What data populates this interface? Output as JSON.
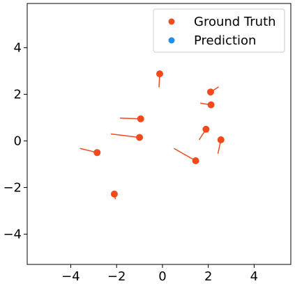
{
  "chart_data": {
    "type": "scatter",
    "xlim": [
      -5.9,
      5.6
    ],
    "ylim": [
      -5.3,
      5.9
    ],
    "xticks": [
      -4,
      -2,
      0,
      2,
      4
    ],
    "yticks": [
      -4,
      -2,
      0,
      2,
      4
    ],
    "xtick_labels": [
      "−4",
      "−2",
      "0",
      "2",
      "4"
    ],
    "ytick_labels": [
      "−4",
      "−2",
      "0",
      "2",
      "4"
    ],
    "grid": false,
    "legend_position": "top-right",
    "series": [
      {
        "name": "Ground Truth",
        "color": "#f24a1a",
        "points": [
          {
            "x": -0.12,
            "y": 2.88,
            "pred_x": -0.15,
            "pred_y": 2.3
          },
          {
            "x": 2.1,
            "y": 2.1,
            "pred_x": 2.45,
            "pred_y": 2.32
          },
          {
            "x": 2.12,
            "y": 1.55,
            "pred_x": 1.65,
            "pred_y": 1.62
          },
          {
            "x": -0.95,
            "y": 0.95,
            "pred_x": -1.85,
            "pred_y": 0.98
          },
          {
            "x": 1.9,
            "y": 0.5,
            "pred_x": 1.6,
            "pred_y": 0.05
          },
          {
            "x": -1.0,
            "y": 0.15,
            "pred_x": -2.25,
            "pred_y": 0.3
          },
          {
            "x": 2.55,
            "y": 0.05,
            "pred_x": 2.42,
            "pred_y": -0.55
          },
          {
            "x": 1.45,
            "y": -0.85,
            "pred_x": 0.5,
            "pred_y": -0.32
          },
          {
            "x": -2.85,
            "y": -0.5,
            "pred_x": -3.6,
            "pred_y": -0.32
          },
          {
            "x": -2.1,
            "y": -2.28,
            "pred_x": -2.05,
            "pred_y": -2.5
          }
        ]
      },
      {
        "name": "Prediction",
        "color": "#1f8fe8",
        "points": []
      }
    ]
  }
}
